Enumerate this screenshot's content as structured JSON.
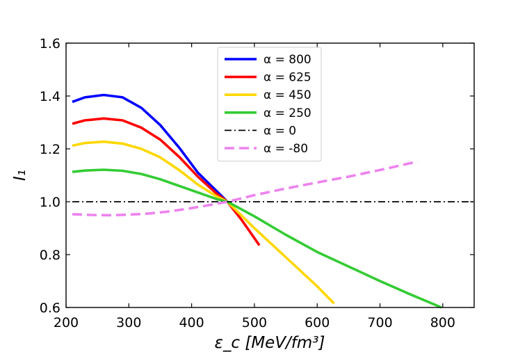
{
  "chart_data": {
    "type": "line",
    "xlabel": "ε_c [MeV/fm³]",
    "ylabel": "I₁",
    "xlim": [
      200,
      850
    ],
    "ylim": [
      0.6,
      1.6
    ],
    "xticks": [
      "200",
      "300",
      "400",
      "500",
      "600",
      "700",
      "800"
    ],
    "yticks": [
      "0.6",
      "0.8",
      "1.0",
      "1.2",
      "1.4",
      "1.6"
    ],
    "grid": false,
    "legend_position": "top-center",
    "series": [
      {
        "name": "α = 800",
        "color": "#0000ff",
        "style": "solid",
        "x": [
          210,
          230,
          260,
          290,
          320,
          350,
          380,
          410,
          440,
          457
        ],
        "y": [
          1.378,
          1.395,
          1.404,
          1.395,
          1.355,
          1.29,
          1.205,
          1.11,
          1.04,
          1.0
        ]
      },
      {
        "name": "α = 625",
        "color": "#ff0000",
        "style": "solid",
        "x": [
          210,
          230,
          260,
          290,
          320,
          350,
          380,
          410,
          440,
          457,
          480,
          508
        ],
        "y": [
          1.295,
          1.308,
          1.315,
          1.308,
          1.28,
          1.235,
          1.17,
          1.095,
          1.03,
          1.0,
          0.93,
          0.835
        ]
      },
      {
        "name": "α = 450",
        "color": "#ffd700",
        "style": "solid",
        "x": [
          210,
          230,
          260,
          290,
          320,
          350,
          380,
          410,
          440,
          457,
          500,
          550,
          600,
          627
        ],
        "y": [
          1.212,
          1.222,
          1.227,
          1.22,
          1.2,
          1.168,
          1.12,
          1.065,
          1.02,
          1.0,
          0.9,
          0.79,
          0.68,
          0.615
        ]
      },
      {
        "name": "α = 250",
        "color": "#33cc33",
        "style": "solid",
        "x": [
          210,
          230,
          260,
          290,
          320,
          350,
          380,
          410,
          440,
          457,
          500,
          550,
          600,
          650,
          700,
          750,
          798
        ],
        "y": [
          1.113,
          1.118,
          1.121,
          1.117,
          1.105,
          1.085,
          1.06,
          1.035,
          1.01,
          1.0,
          0.945,
          0.875,
          0.81,
          0.755,
          0.7,
          0.648,
          0.6
        ]
      },
      {
        "name": "α = 0",
        "color": "#000000",
        "style": "dashdot",
        "x": [
          210,
          850
        ],
        "y": [
          1.0,
          1.0
        ]
      },
      {
        "name": "α = -80",
        "color": "#ee82ee",
        "style": "dashed",
        "x": [
          210,
          240,
          270,
          300,
          330,
          360,
          390,
          420,
          457,
          500,
          550,
          600,
          650,
          700,
          760
        ],
        "y": [
          0.953,
          0.95,
          0.949,
          0.951,
          0.955,
          0.962,
          0.972,
          0.984,
          1.0,
          1.025,
          1.05,
          1.073,
          1.095,
          1.12,
          1.152
        ]
      }
    ]
  }
}
